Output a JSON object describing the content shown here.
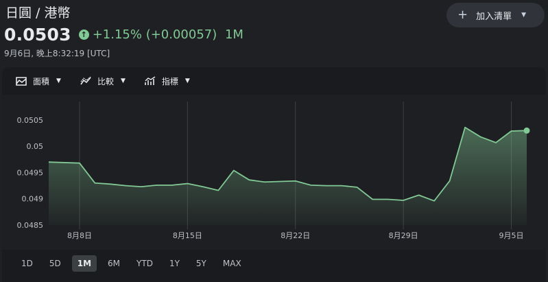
{
  "header": {
    "title": "日圓 / 港幣",
    "add_button_label": "加入清單",
    "price": "0.0503",
    "change_percent": "+1.15%",
    "change_value": "(+0.00057)",
    "change_period": "1M",
    "timestamp": "9月6日, 晚上8:32:19 [UTC]"
  },
  "toolbar": {
    "area_label": "面積",
    "compare_label": "比較",
    "indicators_label": "指標"
  },
  "ranges": [
    {
      "label": "1D",
      "active": false
    },
    {
      "label": "5D",
      "active": false
    },
    {
      "label": "1M",
      "active": true
    },
    {
      "label": "6M",
      "active": false
    },
    {
      "label": "YTD",
      "active": false
    },
    {
      "label": "1Y",
      "active": false
    },
    {
      "label": "5Y",
      "active": false
    },
    {
      "label": "MAX",
      "active": false
    }
  ],
  "colors": {
    "accent_green": "#81c995",
    "background": "#1f2023"
  },
  "chart_data": {
    "type": "area",
    "title": "",
    "xlabel": "",
    "ylabel": "",
    "ylim": [
      0.0485,
      0.0508
    ],
    "y_ticks": [
      "0.0505",
      "0.05",
      "0.0495",
      "0.049",
      "0.0485"
    ],
    "x_ticks": [
      "8月8日",
      "8月15日",
      "8月22日",
      "8月29日",
      "9月5日"
    ],
    "grid": true,
    "series": [
      {
        "x": [
          "8月6日",
          "8月7日",
          "8月8日",
          "8月9日",
          "8月10日",
          "8月11日",
          "8月12日",
          "8月13日",
          "8月14日",
          "8月15日",
          "8月16日",
          "8月17日",
          "8月18日",
          "8月19日",
          "8月20日",
          "8月21日",
          "8月22日",
          "8月23日",
          "8月24日",
          "8月25日",
          "8月26日",
          "8月27日",
          "8月28日",
          "8月29日",
          "8月30日",
          "8月31日",
          "9月1日",
          "9月2日",
          "9月3日",
          "9月4日",
          "9月5日",
          "9月6日"
        ],
        "values": [
          0.0497,
          0.04969,
          0.04968,
          0.0493,
          0.04928,
          0.04925,
          0.04923,
          0.04926,
          0.04926,
          0.04929,
          0.04923,
          0.04916,
          0.04954,
          0.04936,
          0.04932,
          0.04933,
          0.04934,
          0.04926,
          0.04925,
          0.04925,
          0.04922,
          0.04899,
          0.04899,
          0.04897,
          0.04907,
          0.04896,
          0.04934,
          0.05036,
          0.05018,
          0.05007,
          0.05029,
          0.0503
        ]
      }
    ]
  }
}
